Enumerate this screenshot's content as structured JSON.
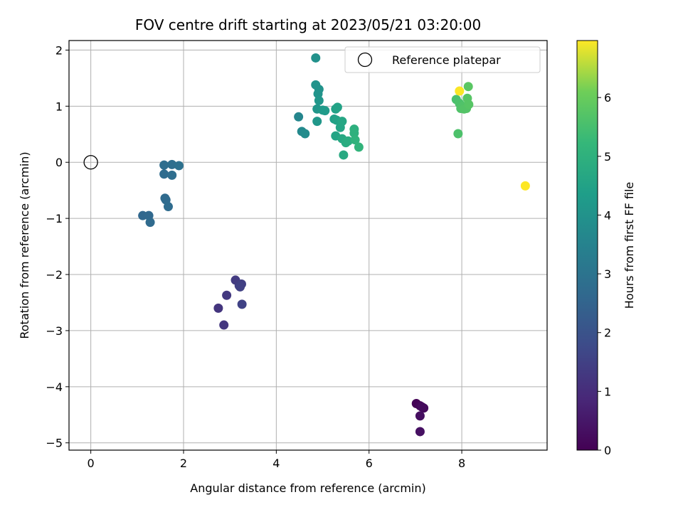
{
  "chart_data": {
    "type": "scatter",
    "title": "FOV centre drift starting at 2023/05/21 03:20:00",
    "xlabel": "Angular distance from reference (arcmin)",
    "ylabel": "Rotation from reference (arcmin)",
    "xlim": [
      -0.47,
      9.84
    ],
    "ylim": [
      -5.13,
      2.17
    ],
    "xticks": [
      0,
      2,
      4,
      6,
      8
    ],
    "yticks": [
      -5,
      -4,
      -3,
      -2,
      -1,
      0,
      1,
      2
    ],
    "xtick_labels": [
      "0",
      "2",
      "4",
      "6",
      "8"
    ],
    "ytick_labels": [
      "−5",
      "−4",
      "−3",
      "−2",
      "−1",
      "0",
      "1",
      "2"
    ],
    "grid": true,
    "legend": {
      "position": "top-right",
      "entries": [
        "Reference platepar"
      ]
    },
    "reference_point": {
      "x": 0,
      "y": 0
    },
    "colorbar": {
      "label": "Hours from first FF file",
      "range": [
        0,
        6.97
      ],
      "ticks": [
        0,
        1,
        2,
        3,
        4,
        5,
        6
      ],
      "tick_labels": [
        "0",
        "1",
        "2",
        "3",
        "4",
        "5",
        "6"
      ],
      "colormap": "viridis"
    },
    "series": [
      {
        "points": [
          {
            "x": 7.02,
            "y": -4.3,
            "c": 0.05
          },
          {
            "x": 7.1,
            "y": -4.34,
            "c": 0.12
          },
          {
            "x": 7.18,
            "y": -4.38,
            "c": 0.18
          },
          {
            "x": 7.14,
            "y": -4.36,
            "c": 0.22
          },
          {
            "x": 7.1,
            "y": -4.52,
            "c": 0.28
          },
          {
            "x": 7.1,
            "y": -4.8,
            "c": 0.33
          },
          {
            "x": 2.75,
            "y": -2.6,
            "c": 1.2
          },
          {
            "x": 2.87,
            "y": -2.9,
            "c": 1.25
          },
          {
            "x": 2.93,
            "y": -2.37,
            "c": 1.3
          },
          {
            "x": 3.12,
            "y": -2.1,
            "c": 1.35
          },
          {
            "x": 3.2,
            "y": -2.2,
            "c": 1.4
          },
          {
            "x": 3.25,
            "y": -2.17,
            "c": 1.45
          },
          {
            "x": 3.22,
            "y": -2.22,
            "c": 1.5
          },
          {
            "x": 3.26,
            "y": -2.53,
            "c": 1.55
          },
          {
            "x": 1.12,
            "y": -0.95,
            "c": 2.6
          },
          {
            "x": 1.25,
            "y": -0.95,
            "c": 2.65
          },
          {
            "x": 1.28,
            "y": -1.07,
            "c": 2.7
          },
          {
            "x": 1.58,
            "y": -0.05,
            "c": 2.8
          },
          {
            "x": 1.58,
            "y": -0.21,
            "c": 2.75
          },
          {
            "x": 1.6,
            "y": -0.64,
            "c": 2.7
          },
          {
            "x": 1.62,
            "y": -0.67,
            "c": 2.72
          },
          {
            "x": 1.67,
            "y": -0.79,
            "c": 2.75
          },
          {
            "x": 1.75,
            "y": -0.04,
            "c": 2.85
          },
          {
            "x": 1.75,
            "y": -0.23,
            "c": 2.8
          },
          {
            "x": 1.9,
            "y": -0.06,
            "c": 2.9
          },
          {
            "x": 4.48,
            "y": 0.81,
            "c": 3.6
          },
          {
            "x": 4.55,
            "y": 0.55,
            "c": 3.7
          },
          {
            "x": 4.62,
            "y": 0.51,
            "c": 3.8
          },
          {
            "x": 4.85,
            "y": 1.86,
            "c": 3.95
          },
          {
            "x": 4.85,
            "y": 1.38,
            "c": 4.0
          },
          {
            "x": 4.9,
            "y": 1.22,
            "c": 4.05
          },
          {
            "x": 4.92,
            "y": 1.3,
            "c": 4.0
          },
          {
            "x": 4.92,
            "y": 1.1,
            "c": 4.1
          },
          {
            "x": 4.88,
            "y": 0.95,
            "c": 4.1
          },
          {
            "x": 4.88,
            "y": 0.73,
            "c": 4.15
          },
          {
            "x": 5.0,
            "y": 0.93,
            "c": 4.2
          },
          {
            "x": 5.05,
            "y": 0.92,
            "c": 4.25
          },
          {
            "x": 5.25,
            "y": 0.77,
            "c": 4.4
          },
          {
            "x": 5.28,
            "y": 0.95,
            "c": 4.45
          },
          {
            "x": 5.32,
            "y": 0.98,
            "c": 4.5
          },
          {
            "x": 5.3,
            "y": 0.75,
            "c": 4.5
          },
          {
            "x": 5.28,
            "y": 0.47,
            "c": 4.55
          },
          {
            "x": 5.38,
            "y": 0.62,
            "c": 4.6
          },
          {
            "x": 5.42,
            "y": 0.73,
            "c": 4.65
          },
          {
            "x": 5.42,
            "y": 0.42,
            "c": 4.7
          },
          {
            "x": 5.45,
            "y": 0.13,
            "c": 4.75
          },
          {
            "x": 5.5,
            "y": 0.35,
            "c": 4.8
          },
          {
            "x": 5.55,
            "y": 0.38,
            "c": 4.85
          },
          {
            "x": 5.68,
            "y": 0.59,
            "c": 4.95
          },
          {
            "x": 5.68,
            "y": 0.52,
            "c": 5.0
          },
          {
            "x": 5.7,
            "y": 0.4,
            "c": 5.05
          },
          {
            "x": 5.78,
            "y": 0.27,
            "c": 5.1
          },
          {
            "x": 7.88,
            "y": 1.12,
            "c": 5.55
          },
          {
            "x": 7.92,
            "y": 0.51,
            "c": 5.6
          },
          {
            "x": 7.95,
            "y": 1.05,
            "c": 5.6
          },
          {
            "x": 7.98,
            "y": 0.96,
            "c": 5.65
          },
          {
            "x": 8.02,
            "y": 1.0,
            "c": 5.65
          },
          {
            "x": 8.05,
            "y": 0.95,
            "c": 5.7
          },
          {
            "x": 8.1,
            "y": 0.96,
            "c": 5.7
          },
          {
            "x": 8.12,
            "y": 1.14,
            "c": 5.75
          },
          {
            "x": 8.15,
            "y": 1.03,
            "c": 5.75
          },
          {
            "x": 8.14,
            "y": 1.35,
            "c": 5.8
          },
          {
            "x": 7.95,
            "y": 1.27,
            "c": 6.95
          },
          {
            "x": 9.37,
            "y": -0.42,
            "c": 6.97
          }
        ]
      }
    ]
  }
}
